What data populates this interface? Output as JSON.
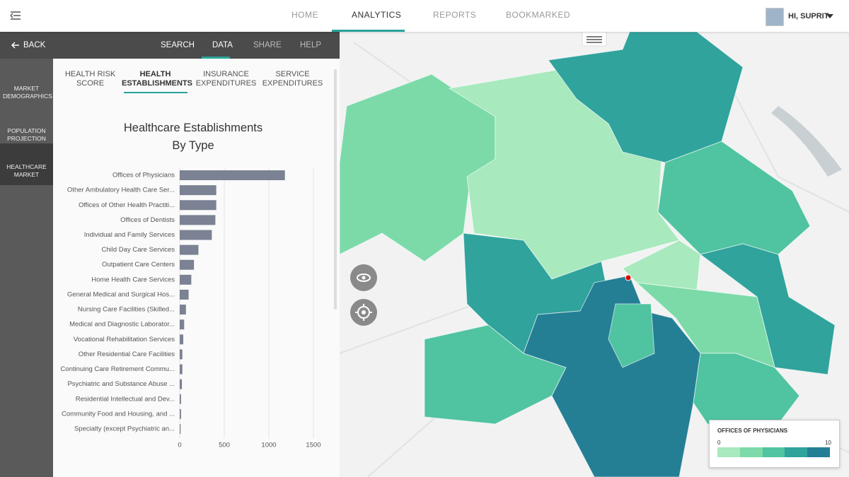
{
  "nav": {
    "items": [
      "HOME",
      "ANALYTICS",
      "REPORTS",
      "BOOKMARKED"
    ],
    "user": "HI, SUPRIT"
  },
  "toolbar": {
    "back": "BACK",
    "tools": [
      "SEARCH",
      "DATA",
      "SHARE",
      "HELP"
    ]
  },
  "sidebar": {
    "items": [
      "MARKET DEMOGRAPHICS",
      "POPULATION PROJECTION",
      "HEALTHCARE MARKET"
    ]
  },
  "tabs": [
    "HEALTH RISK SCORE",
    "HEALTH ESTABLISHMENTS",
    "INSURANCE EXPENDITURES",
    "SERVICE EXPENDITURES"
  ],
  "chart_data": {
    "type": "hbar",
    "title": "Healthcare Establishments By Type",
    "color": "#7a8293",
    "categories": [
      "Offices of Physicians",
      "Other Ambulatory Health Care Ser...",
      "Offices of Other Health Practiti...",
      "Offices of Dentists",
      "Individual and Family Services",
      "Child Day Care Services",
      "Outpatient Care Centers",
      "Home Health Care Services",
      "General Medical and Surgical Hos...",
      "Nursing Care Facilities (Skilled...",
      "Medical and Diagnostic Laborator...",
      "Vocational Rehabilitation Services",
      "Other Residential Care Facilities",
      "Continuing Care Retirement Commu...",
      "Psychiatric and Substance Abuse ...",
      "Residential Intellectual and Dev...",
      "Community Food and Housing, and ...",
      "Specialty (except Psychiatric an..."
    ],
    "values": [
      1180,
      410,
      410,
      400,
      360,
      210,
      160,
      130,
      100,
      70,
      50,
      40,
      30,
      30,
      25,
      15,
      15,
      10
    ],
    "xlim": [
      0,
      1500
    ],
    "xticks": [
      0,
      500,
      1000,
      1500
    ],
    "grid": true
  },
  "legend": {
    "title": "OFFICES OF PHYSICIANS",
    "min": 0,
    "max": 10,
    "colors": [
      "#a8e9bd",
      "#7cdaa9",
      "#50c3a0",
      "#2fa39c",
      "#247f95"
    ]
  }
}
